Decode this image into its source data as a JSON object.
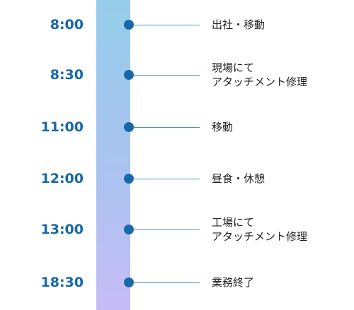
{
  "timeline": [
    {
      "time": "8:00",
      "lines": [
        "出社・移動"
      ]
    },
    {
      "time": "8:30",
      "lines": [
        "現場にて",
        "アタッチメント修理"
      ]
    },
    {
      "time": "11:00",
      "lines": [
        "移動"
      ]
    },
    {
      "time": "12:00",
      "lines": [
        "昼食・休憩"
      ]
    },
    {
      "time": "13:00",
      "lines": [
        "工場にて",
        "アタッチメント修理"
      ]
    },
    {
      "time": "18:30",
      "lines": [
        "業務終了"
      ]
    }
  ]
}
